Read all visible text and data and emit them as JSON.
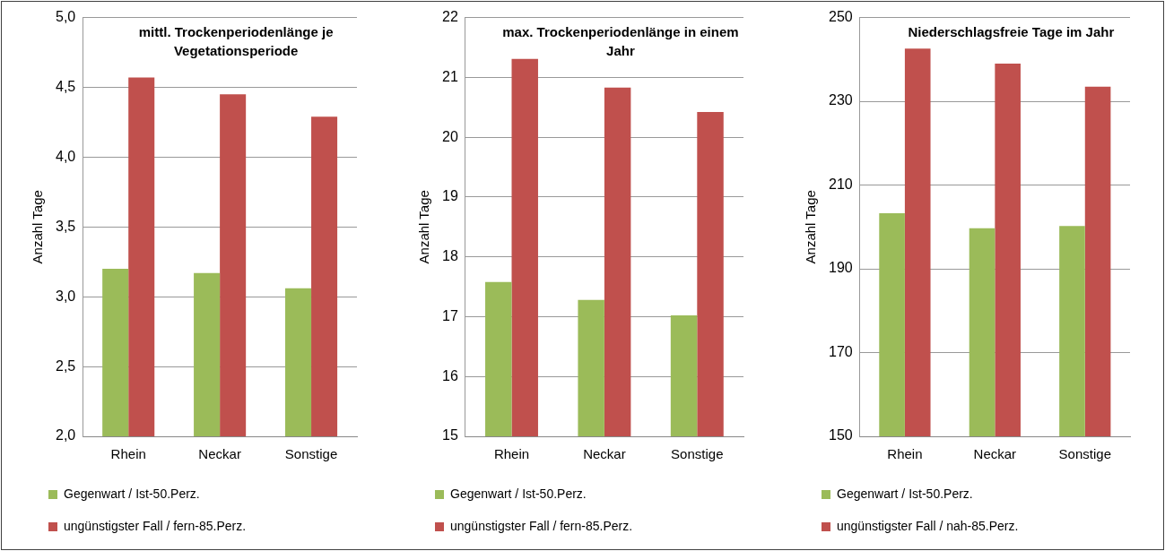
{
  "chart_data": [
    {
      "type": "bar",
      "title": "mittl. Trockenperiodenlänge je Vegetationsperiode",
      "ylabel": "Anzahl Tage",
      "categories": [
        "Rhein",
        "Neckar",
        "Sonstige"
      ],
      "series": [
        {
          "name": "Gegenwart / Ist-50.Perz.",
          "color": "#9bbb59",
          "values": [
            3.2,
            3.17,
            3.06
          ]
        },
        {
          "name": "ungünstigster Fall / fern-85.Perz.",
          "color": "#c0504d",
          "values": [
            4.57,
            4.45,
            4.29
          ]
        }
      ],
      "ylim": [
        2,
        5
      ],
      "yticks": [
        {
          "value": 2,
          "label": "2,0"
        },
        {
          "value": 2.5,
          "label": "2,5"
        },
        {
          "value": 3,
          "label": "3,0"
        },
        {
          "value": 3.5,
          "label": "3,5"
        },
        {
          "value": 4,
          "label": "4,0"
        },
        {
          "value": 4.5,
          "label": "4,5"
        },
        {
          "value": 5,
          "label": "5,0"
        }
      ],
      "grid": "y",
      "legend": "bottom"
    },
    {
      "type": "bar",
      "title": "max. Trockenperiodenlänge in einem Jahr",
      "ylabel": "Anzahl Tage",
      "categories": [
        "Rhein",
        "Neckar",
        "Sonstige"
      ],
      "series": [
        {
          "name": "Gegenwart / Ist-50.Perz.",
          "color": "#9bbb59",
          "values": [
            17.58,
            17.28,
            17.02
          ]
        },
        {
          "name": "ungünstigster Fall / fern-85.Perz.",
          "color": "#c0504d",
          "values": [
            21.31,
            20.83,
            20.42
          ]
        }
      ],
      "ylim": [
        15,
        22
      ],
      "yticks": [
        15,
        16,
        17,
        18,
        19,
        20,
        21,
        22
      ],
      "grid": "y",
      "legend": "bottom"
    },
    {
      "type": "bar",
      "title": "Niederschlagsfreie Tage im Jahr",
      "ylabel": "Anzahl Tage",
      "categories": [
        "Rhein",
        "Neckar",
        "Sonstige"
      ],
      "series": [
        {
          "name": "Gegenwart / Ist-50.Perz.",
          "color": "#9bbb59",
          "values": [
            203.3,
            199.7,
            200.2
          ]
        },
        {
          "name": "ungünstigster Fall / nah-85.Perz.",
          "color": "#c0504d",
          "values": [
            242.6,
            239,
            233.5
          ]
        }
      ],
      "ylim": [
        150,
        250
      ],
      "yticks": [
        150,
        170,
        190,
        210,
        230,
        250
      ],
      "grid": "y",
      "legend": "bottom"
    }
  ]
}
